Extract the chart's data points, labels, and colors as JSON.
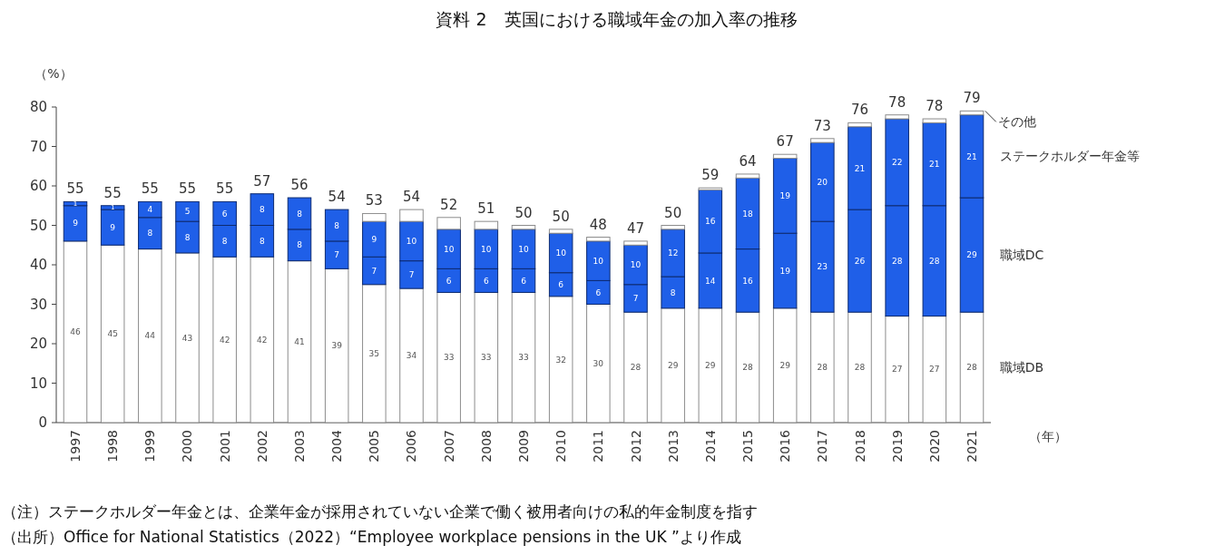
{
  "chart_data": {
    "type": "bar",
    "stacked": true,
    "title": "資料 2　英国における職域年金の加入率の推移",
    "ylabel": "（%）",
    "xlabel": "（年）",
    "categories": [
      "1997",
      "1998",
      "1999",
      "2000",
      "2001",
      "2002",
      "2003",
      "2004",
      "2005",
      "2006",
      "2007",
      "2008",
      "2009",
      "2010",
      "2011",
      "2012",
      "2013",
      "2014",
      "2015",
      "2016",
      "2017",
      "2018",
      "2019",
      "2020",
      "2021"
    ],
    "series": [
      {
        "name": "職域DB",
        "color": "#ffffff",
        "values": [
          46,
          45,
          44,
          43,
          42,
          42,
          41,
          39,
          35,
          34,
          33,
          33,
          33,
          32,
          30,
          28,
          29,
          29,
          28,
          29,
          28,
          28,
          27,
          27,
          28
        ],
        "value_labels": [
          "46",
          "45",
          "44",
          "43",
          "42",
          "42",
          "41",
          "39",
          "35",
          "34",
          "33",
          "33",
          "33",
          "32",
          "30",
          "28",
          "29",
          "29",
          "28",
          "29",
          "28",
          "28",
          "27",
          "27",
          "28"
        ]
      },
      {
        "name": "職域DC",
        "color": "#1f5fe8",
        "values": [
          9,
          9,
          8,
          8,
          8,
          8,
          8,
          7,
          7,
          7,
          6,
          6,
          6,
          6,
          6,
          7,
          8,
          14,
          16,
          19,
          23,
          26,
          28,
          28,
          29
        ],
        "value_labels": [
          "9",
          "9",
          "8",
          "8",
          "8",
          "8",
          "8",
          "7",
          "7",
          "7",
          "6",
          "6",
          "6",
          "6",
          "6",
          "7",
          "8",
          "14",
          "16",
          "19",
          "23",
          "26",
          "28",
          "28",
          "29"
        ]
      },
      {
        "name": "ステークホルダー年金等",
        "color": "#1f5fe8",
        "values": [
          1,
          1,
          4,
          5,
          6,
          8,
          8,
          8,
          9,
          10,
          10,
          10,
          10,
          10,
          10,
          10,
          12,
          16,
          18,
          19,
          20,
          21,
          22,
          21,
          21
        ],
        "value_labels": [
          "1",
          "1",
          "4",
          "5",
          "6",
          "8",
          "8",
          "8",
          "9",
          "10",
          "10",
          "10",
          "10",
          "10",
          "10",
          "10",
          "12",
          "16",
          "18",
          "19",
          "20",
          "21",
          "22",
          "21",
          "21"
        ]
      },
      {
        "name": "その他",
        "color": "#ffffff",
        "values": [
          0,
          0,
          0,
          0,
          0,
          0,
          0,
          0,
          2,
          3,
          3,
          2,
          1,
          1,
          1,
          1,
          1,
          0.5,
          1,
          1,
          1,
          1,
          1,
          1,
          1
        ]
      }
    ],
    "totals": [
      "55",
      "55",
      "55",
      "55",
      "55",
      "57",
      "56",
      "54",
      "53",
      "54",
      "52",
      "51",
      "50",
      "50",
      "48",
      "47",
      "50",
      "59",
      "64",
      "67",
      "73",
      "76",
      "78",
      "78",
      "79"
    ],
    "ylim": [
      0,
      80
    ],
    "yticks": [
      0,
      10,
      20,
      30,
      40,
      50,
      60,
      70,
      80
    ],
    "grid": false,
    "legend": false,
    "annotations": [
      "（注）ステークホルダー年金とは、企業年金が採用されていない企業で働く被用者向けの私的年金制度を指す",
      "（出所）Office for National Statistics（2022）“Employee workplace pensions in the UK ”より作成"
    ]
  }
}
